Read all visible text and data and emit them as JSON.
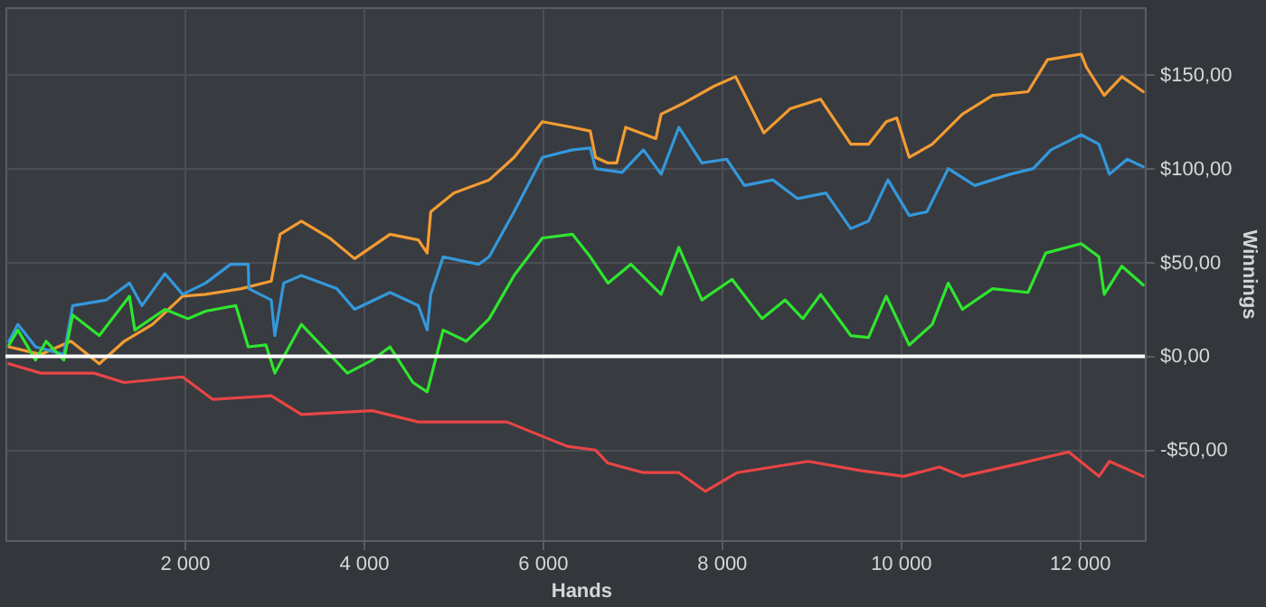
{
  "chart_data": {
    "type": "line",
    "xlabel": "Hands",
    "ylabel": "Winnings",
    "xlim": [
      0,
      12730
    ],
    "ylim": [
      -98,
      186
    ],
    "xticks": [
      {
        "value": 2000,
        "label": "2 000"
      },
      {
        "value": 4000,
        "label": "4 000"
      },
      {
        "value": 6000,
        "label": "6 000"
      },
      {
        "value": 8000,
        "label": "8 000"
      },
      {
        "value": 10000,
        "label": "10 000"
      },
      {
        "value": 12000,
        "label": "12 000"
      }
    ],
    "yticks": [
      {
        "value": -50,
        "label": "-$50,00"
      },
      {
        "value": 0,
        "label": "$0,00"
      },
      {
        "value": 50,
        "label": "$50,00"
      },
      {
        "value": 100,
        "label": "$100,00"
      },
      {
        "value": 150,
        "label": "$150,00"
      }
    ],
    "grid": true,
    "legend": false,
    "line_style": "solid",
    "marker": "none",
    "ref_lines": [
      {
        "axis": "y",
        "value": 0,
        "label": null,
        "color": "#ffffff"
      }
    ],
    "series": [
      {
        "color": "#f39c32",
        "x": [
          40,
          396,
          733,
          1049,
          1327,
          1643,
          1980,
          2237,
          2633,
          2970,
          3069,
          3307,
          3623,
          3901,
          4297,
          4613,
          4712,
          4752,
          5009,
          5405,
          5683,
          5999,
          6336,
          6534,
          6593,
          6732,
          6830,
          6930,
          7267,
          7326,
          7583,
          7920,
          8158,
          8474,
          8771,
          9108,
          9445,
          9643,
          9841,
          9959,
          10098,
          10355,
          10692,
          11029,
          11425,
          11642,
          12019,
          12078,
          12276,
          12474,
          12712
        ],
        "values": [
          5,
          1,
          8,
          -4,
          8,
          17,
          32,
          33,
          36,
          40,
          65,
          72,
          63,
          52,
          65,
          62,
          55,
          77,
          87,
          94,
          106,
          125,
          122,
          120,
          106,
          103,
          103,
          122,
          116,
          129,
          135,
          144,
          149,
          119,
          132,
          137,
          113,
          113,
          125,
          127,
          106,
          113,
          129,
          139,
          141,
          158,
          161,
          154,
          139,
          149,
          141
        ]
      },
      {
        "color": "#3498db",
        "x": [
          40,
          139,
          337,
          653,
          752,
          1129,
          1386,
          1525,
          1782,
          1980,
          2237,
          2515,
          2713,
          2720,
          2970,
          3010,
          3109,
          3307,
          3703,
          3901,
          4297,
          4613,
          4712,
          4752,
          4891,
          5287,
          5405,
          5683,
          5999,
          6336,
          6534,
          6593,
          6890,
          7128,
          7326,
          7524,
          7781,
          8059,
          8257,
          8573,
          8851,
          9167,
          9445,
          9643,
          9860,
          10098,
          10296,
          10534,
          10831,
          11227,
          11484,
          11682,
          12019,
          12217,
          12335,
          12533,
          12712
        ],
        "values": [
          8,
          17,
          5,
          1,
          27,
          30,
          39,
          27,
          44,
          33,
          39,
          49,
          49,
          36,
          30,
          11,
          39,
          43,
          36,
          25,
          34,
          27,
          14,
          33,
          53,
          49,
          53,
          77,
          106,
          110,
          111,
          100,
          98,
          110,
          97,
          122,
          103,
          105,
          91,
          94,
          84,
          87,
          68,
          72,
          94,
          75,
          77,
          100,
          91,
          97,
          100,
          110,
          118,
          113,
          97,
          105,
          101
        ]
      },
      {
        "color": "#2ee62e",
        "x": [
          40,
          139,
          337,
          455,
          653,
          752,
          1049,
          1386,
          1445,
          1782,
          2039,
          2237,
          2574,
          2713,
          2911,
          3010,
          3307,
          3821,
          4099,
          4297,
          4554,
          4712,
          4891,
          5148,
          5405,
          5683,
          5999,
          6336,
          6534,
          6732,
          6989,
          7326,
          7524,
          7781,
          8118,
          8455,
          8712,
          8910,
          9108,
          9445,
          9643,
          9841,
          10098,
          10355,
          10534,
          10692,
          11029,
          11425,
          11623,
          12019,
          12217,
          12276,
          12474,
          12712
        ],
        "values": [
          6,
          14,
          -2,
          8,
          -2,
          22,
          11,
          32,
          14,
          25,
          20,
          24,
          27,
          5,
          6,
          -9,
          17,
          -9,
          -2,
          5,
          -14,
          -19,
          14,
          8,
          20,
          43,
          63,
          65,
          53,
          39,
          49,
          33,
          58,
          30,
          41,
          20,
          30,
          20,
          33,
          11,
          10,
          32,
          6,
          17,
          39,
          25,
          36,
          34,
          55,
          60,
          53,
          33,
          48,
          38
        ]
      },
      {
        "color": "#e84545",
        "x": [
          40,
          396,
          990,
          1327,
          1980,
          2317,
          2970,
          3307,
          4099,
          4613,
          5603,
          6277,
          6593,
          6732,
          7128,
          7524,
          7821,
          8177,
          8969,
          9563,
          10039,
          10435,
          10692,
          11345,
          11880,
          12217,
          12335,
          12712
        ],
        "values": [
          -4,
          -9,
          -9,
          -14,
          -11,
          -23,
          -21,
          -31,
          -29,
          -35,
          -35,
          -48,
          -50,
          -57,
          -62,
          -62,
          -72,
          -62,
          -56,
          -61,
          -64,
          -59,
          -64,
          -57,
          -51,
          -64,
          -56,
          -64
        ]
      }
    ]
  }
}
